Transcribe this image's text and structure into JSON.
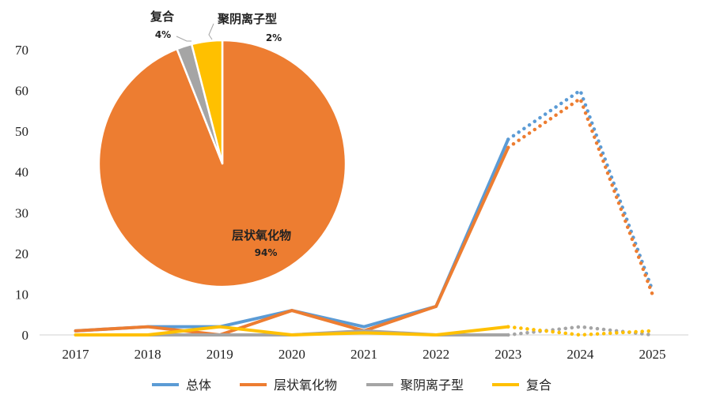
{
  "chart_data": [
    {
      "type": "line",
      "title": "",
      "xlabel": "",
      "ylabel": "",
      "ylim": [
        0,
        70
      ],
      "yticks": [
        0,
        10,
        20,
        30,
        40,
        50,
        60,
        70
      ],
      "categories": [
        "2017",
        "2018",
        "2019",
        "2020",
        "2021",
        "2022",
        "2023",
        "2024",
        "2025"
      ],
      "forecast_from": "2023",
      "legend_position": "bottom",
      "series": [
        {
          "name": "总体",
          "color": "#5B9BD5",
          "values": [
            1,
            2,
            2,
            6,
            2,
            7,
            48,
            60,
            11
          ]
        },
        {
          "name": "层状氧化物",
          "color": "#ED7D31",
          "values": [
            1,
            2,
            0,
            6,
            1,
            7,
            46,
            58,
            10
          ]
        },
        {
          "name": "聚阴离子型",
          "color": "#A5A5A5",
          "values": [
            0,
            0,
            0,
            0,
            1,
            0,
            0,
            2,
            0
          ]
        },
        {
          "name": "复合",
          "color": "#FFC000",
          "values": [
            0,
            0,
            2,
            0,
            0.5,
            0,
            2,
            0,
            1
          ]
        }
      ]
    },
    {
      "type": "pie",
      "title": "",
      "slices": [
        {
          "name": "层状氧化物",
          "value": 94,
          "label": "94%",
          "color": "#ED7D31"
        },
        {
          "name": "聚阴离子型",
          "value": 2,
          "label": "2%",
          "color": "#A5A5A5"
        },
        {
          "name": "复合",
          "value": 4,
          "label": "4%",
          "color": "#FFC000"
        }
      ]
    }
  ]
}
